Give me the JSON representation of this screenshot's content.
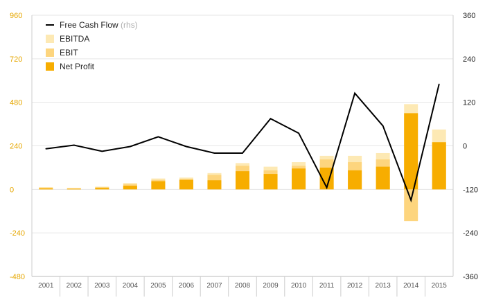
{
  "chart_data": {
    "type": "bar+line",
    "categories": [
      "2001",
      "2002",
      "2003",
      "2004",
      "2005",
      "2006",
      "2007",
      "2008",
      "2009",
      "2010",
      "2011",
      "2012",
      "2013",
      "2014",
      "2015"
    ],
    "series": [
      {
        "name": "EBITDA",
        "axis": "left",
        "kind": "bar",
        "color": "#fde9b4",
        "values": [
          12,
          8,
          15,
          35,
          60,
          65,
          90,
          145,
          125,
          150,
          185,
          185,
          200,
          470,
          330
        ]
      },
      {
        "name": "EBIT",
        "axis": "left",
        "kind": "bar",
        "color": "#fdd57e",
        "values": [
          10,
          6,
          12,
          28,
          52,
          58,
          80,
          130,
          105,
          130,
          165,
          150,
          165,
          -175,
          260
        ]
      },
      {
        "name": "Net Profit",
        "axis": "left",
        "kind": "bar",
        "color": "#f7ad00",
        "values": [
          5,
          3,
          8,
          20,
          45,
          52,
          50,
          100,
          85,
          115,
          120,
          105,
          125,
          420,
          260
        ]
      },
      {
        "name": "Free Cash Flow",
        "axis": "right",
        "kind": "line",
        "color": "#000000",
        "values": [
          -8,
          2,
          -15,
          -2,
          25,
          -2,
          -20,
          -20,
          75,
          35,
          -115,
          145,
          55,
          -150,
          170
        ]
      }
    ],
    "y_left": {
      "ticks": [
        "960",
        "720",
        "480",
        "240",
        "0",
        "-240",
        "-480"
      ],
      "ylim": [
        -480,
        960
      ]
    },
    "y_right": {
      "ticks": [
        "360",
        "240",
        "120",
        "0",
        "-120",
        "-240",
        "-360"
      ],
      "ylim": [
        -360,
        360
      ]
    },
    "legend": {
      "placement": "top-left",
      "items": [
        {
          "label": "Free Cash Flow",
          "suffix": "(rhs)",
          "kind": "line",
          "color": "#000000"
        },
        {
          "label": "EBITDA",
          "suffix": "",
          "kind": "box",
          "color": "#fde9b4"
        },
        {
          "label": "EBIT",
          "suffix": "",
          "kind": "box",
          "color": "#fdd57e"
        },
        {
          "label": "Net Profit",
          "suffix": "",
          "kind": "box",
          "color": "#f7ad00"
        }
      ]
    },
    "grid": true,
    "title": "",
    "xlabel": "",
    "ylabel": ""
  }
}
